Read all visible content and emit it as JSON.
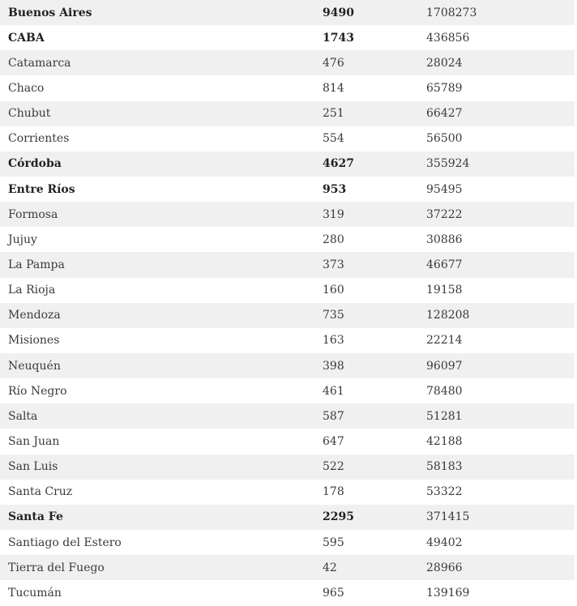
{
  "table": {
    "rows": [
      {
        "province": "Buenos Aires",
        "value1": "9490",
        "value2": "1708273",
        "bold": true
      },
      {
        "province": "CABA",
        "value1": "1743",
        "value2": "436856",
        "bold": true
      },
      {
        "province": "Catamarca",
        "value1": "476",
        "value2": "28024",
        "bold": false
      },
      {
        "province": "Chaco",
        "value1": "814",
        "value2": "65789",
        "bold": false
      },
      {
        "province": "Chubut",
        "value1": "251",
        "value2": "66427",
        "bold": false
      },
      {
        "province": "Corrientes",
        "value1": "554",
        "value2": "56500",
        "bold": false
      },
      {
        "province": "Córdoba",
        "value1": "4627",
        "value2": "355924",
        "bold": true
      },
      {
        "province": "Entre Ríos",
        "value1": "953",
        "value2": "95495",
        "bold": true
      },
      {
        "province": "Formosa",
        "value1": "319",
        "value2": "37222",
        "bold": false
      },
      {
        "province": "Jujuy",
        "value1": "280",
        "value2": "30886",
        "bold": false
      },
      {
        "province": "La Pampa",
        "value1": "373",
        "value2": "46677",
        "bold": false
      },
      {
        "province": "La Rioja",
        "value1": "160",
        "value2": "19158",
        "bold": false
      },
      {
        "province": "Mendoza",
        "value1": "735",
        "value2": "128208",
        "bold": false
      },
      {
        "province": "Misiones",
        "value1": "163",
        "value2": "22214",
        "bold": false
      },
      {
        "province": "Neuquén",
        "value1": "398",
        "value2": "96097",
        "bold": false
      },
      {
        "province": "Río Negro",
        "value1": "461",
        "value2": "78480",
        "bold": false
      },
      {
        "province": "Salta",
        "value1": "587",
        "value2": "51281",
        "bold": false
      },
      {
        "province": "San Juan",
        "value1": "647",
        "value2": "42188",
        "bold": false
      },
      {
        "province": "San Luis",
        "value1": "522",
        "value2": "58183",
        "bold": false
      },
      {
        "province": "Santa Cruz",
        "value1": "178",
        "value2": "53322",
        "bold": false
      },
      {
        "province": "Santa Fe",
        "value1": "2295",
        "value2": "371415",
        "bold": true
      },
      {
        "province": "Santiago del Estero",
        "value1": "595",
        "value2": "49402",
        "bold": false
      },
      {
        "province": "Tierra del Fuego",
        "value1": "42",
        "value2": "28966",
        "bold": false
      },
      {
        "province": "Tucumán",
        "value1": "965",
        "value2": "139169",
        "bold": false
      }
    ]
  }
}
